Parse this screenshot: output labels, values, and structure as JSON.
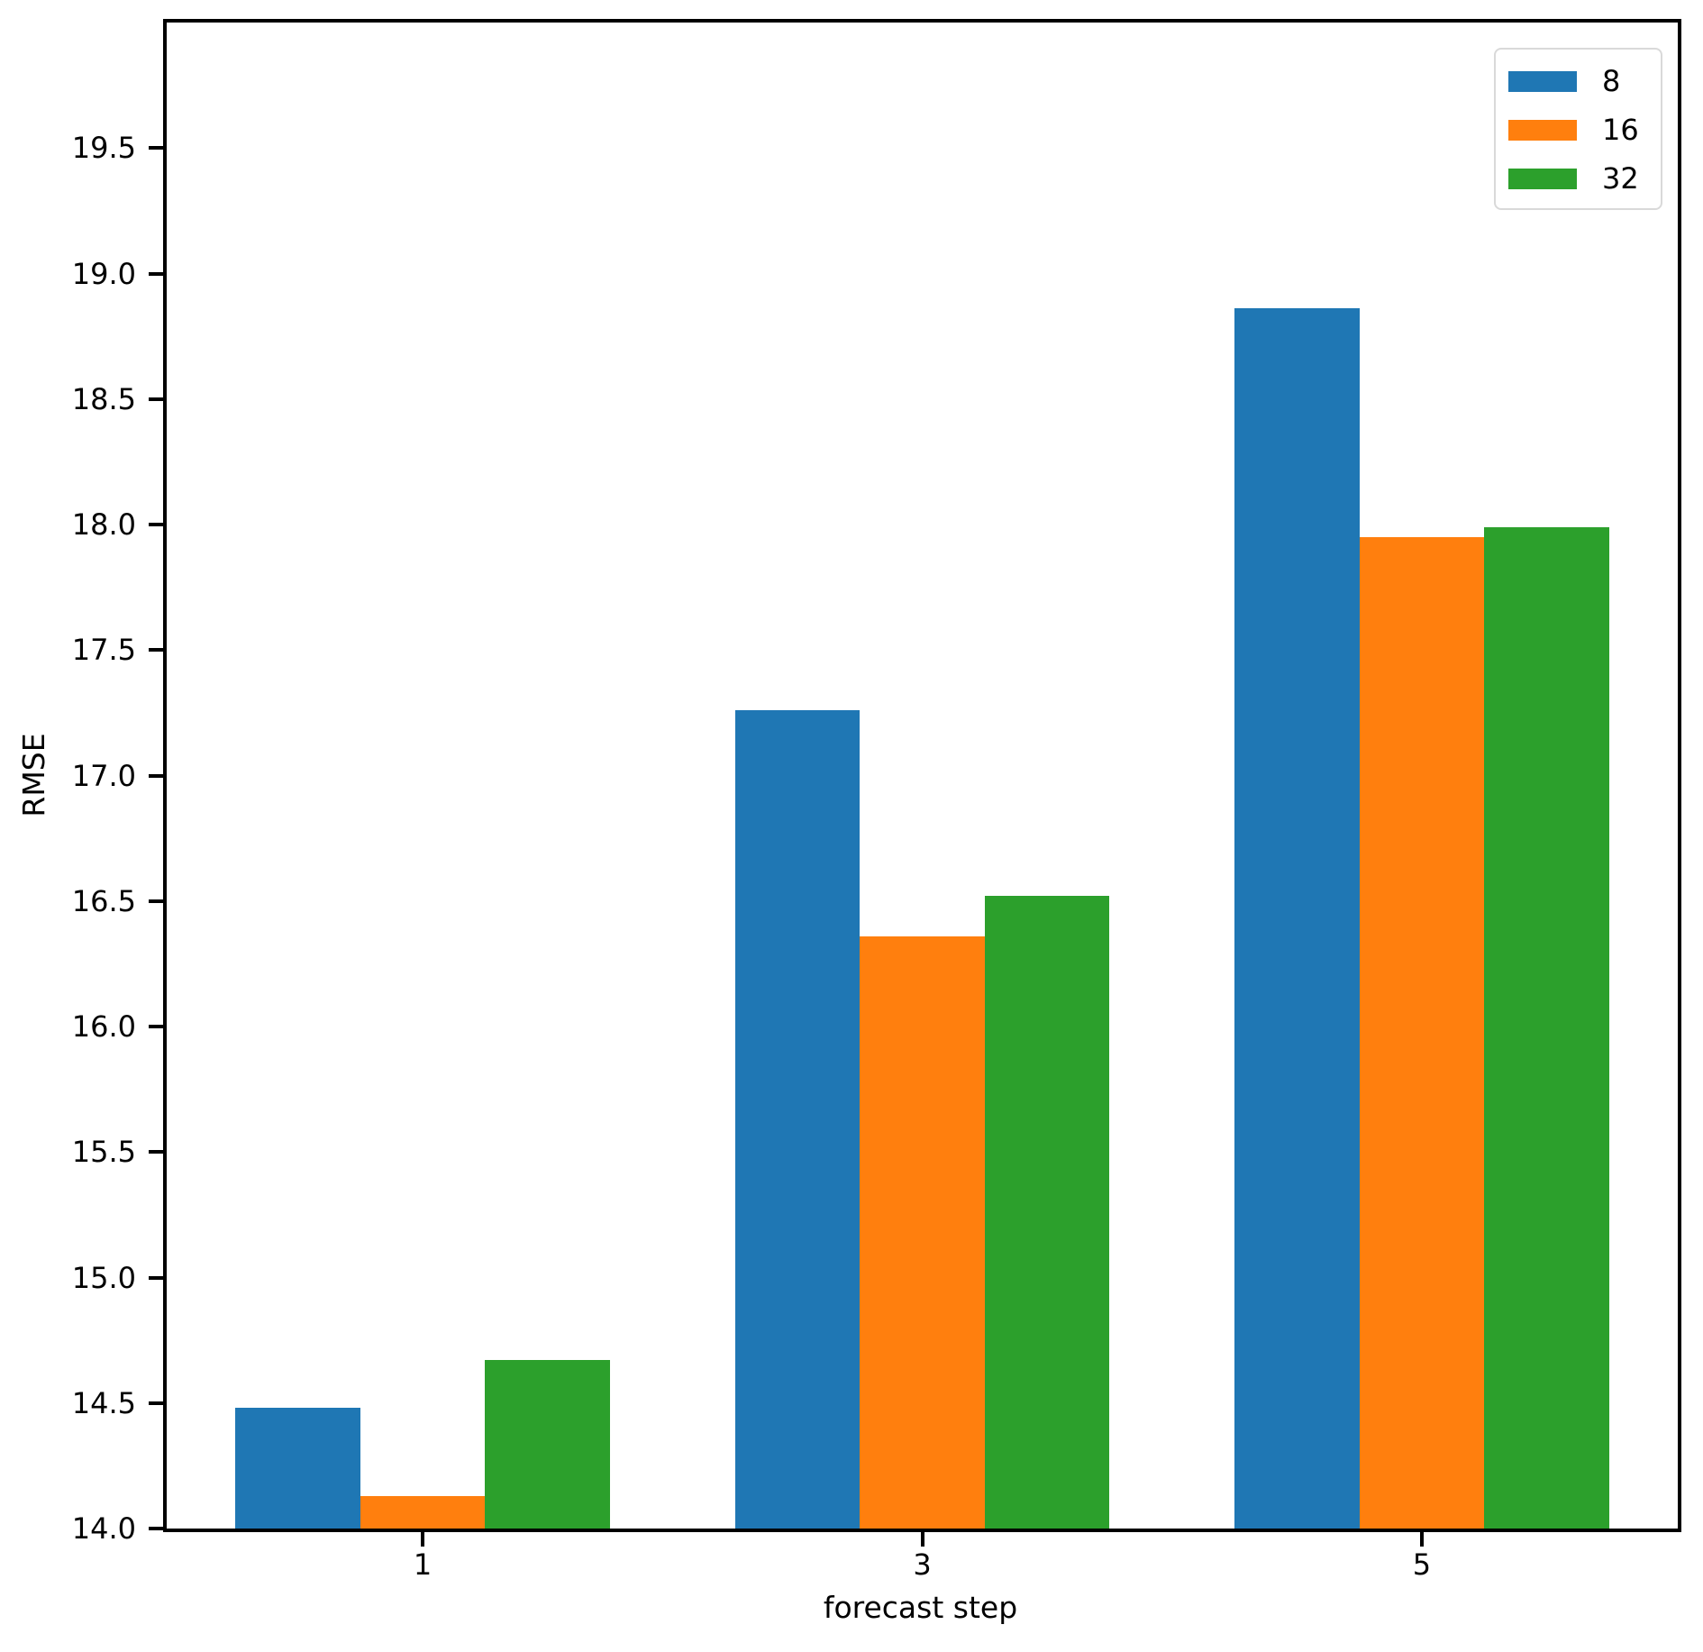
{
  "chart_data": {
    "type": "bar",
    "title": "",
    "xlabel": "forecast step",
    "ylabel": "RMSE",
    "categories": [
      1,
      3,
      5
    ],
    "series": [
      {
        "name": "8",
        "color": "#1f77b4",
        "values": [
          14.48,
          17.26,
          18.86
        ]
      },
      {
        "name": "16",
        "color": "#ff7f0e",
        "values": [
          14.13,
          16.36,
          17.95
        ]
      },
      {
        "name": "32",
        "color": "#2ca02c",
        "values": [
          14.67,
          16.52,
          17.99
        ]
      }
    ],
    "ylim": [
      14.0,
      20.0
    ],
    "yticks": [
      14.0,
      14.5,
      15.0,
      15.5,
      16.0,
      16.5,
      17.0,
      17.5,
      18.0,
      18.5,
      19.0,
      19.5
    ],
    "xlim": [
      -0.025,
      6.025
    ],
    "bar_width": 0.5,
    "group_offset": 0.5,
    "grid": false,
    "legend_position": "upper right",
    "background_color": "#ffffff",
    "axis_color": "#000000",
    "legend_border_color": "#d9d9d9"
  }
}
